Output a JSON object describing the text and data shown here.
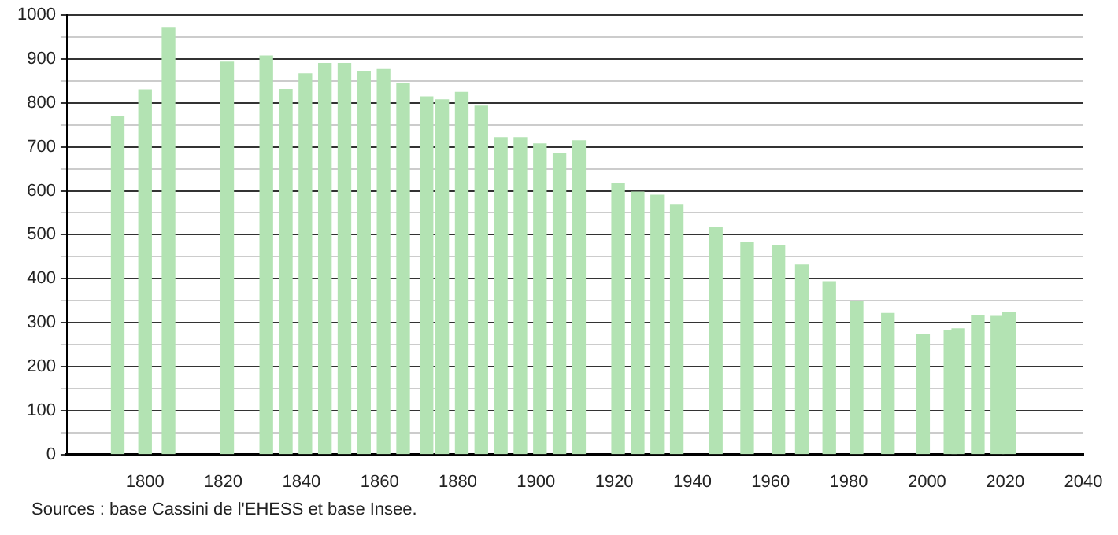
{
  "chart_data": {
    "type": "bar",
    "color": "#b3e3b3",
    "x": [
      1793,
      1800,
      1806,
      1821,
      1831,
      1836,
      1841,
      1846,
      1851,
      1856,
      1861,
      1866,
      1872,
      1876,
      1881,
      1886,
      1891,
      1896,
      1901,
      1906,
      1911,
      1921,
      1926,
      1931,
      1936,
      1946,
      1954,
      1962,
      1968,
      1975,
      1982,
      1990,
      1999,
      2006,
      2008,
      2013,
      2018,
      2021
    ],
    "values": [
      770,
      830,
      972,
      893,
      907,
      831,
      866,
      890,
      890,
      872,
      876,
      845,
      814,
      807,
      824,
      793,
      721,
      721,
      707,
      686,
      714,
      617,
      597,
      590,
      569,
      517,
      483,
      476,
      431,
      393,
      348,
      321,
      272,
      283,
      286,
      317,
      314,
      324
    ],
    "xlim": [
      1780,
      2040
    ],
    "xticks": [
      1800,
      1820,
      1840,
      1860,
      1880,
      1900,
      1920,
      1940,
      1960,
      1980,
      2000,
      2020,
      2040
    ],
    "ylim": [
      0,
      1000
    ],
    "yticks": [
      0,
      {
        "value": 50,
        "label": null
      },
      100,
      {
        "value": 150,
        "label": null
      },
      200,
      {
        "value": 250,
        "label": null
      },
      300,
      {
        "value": 350,
        "label": null
      },
      400,
      {
        "value": 450,
        "label": null
      },
      500,
      {
        "value": 550,
        "label": null
      },
      600,
      {
        "value": 650,
        "label": null
      },
      700,
      {
        "value": 750,
        "label": null
      },
      800,
      {
        "value": 850,
        "label": null
      },
      900,
      {
        "value": 950,
        "label": null
      },
      1000
    ],
    "grid": "y",
    "legend": false,
    "annotations": [
      "Sources : base Cassini de l'EHESS et base Insee."
    ]
  }
}
